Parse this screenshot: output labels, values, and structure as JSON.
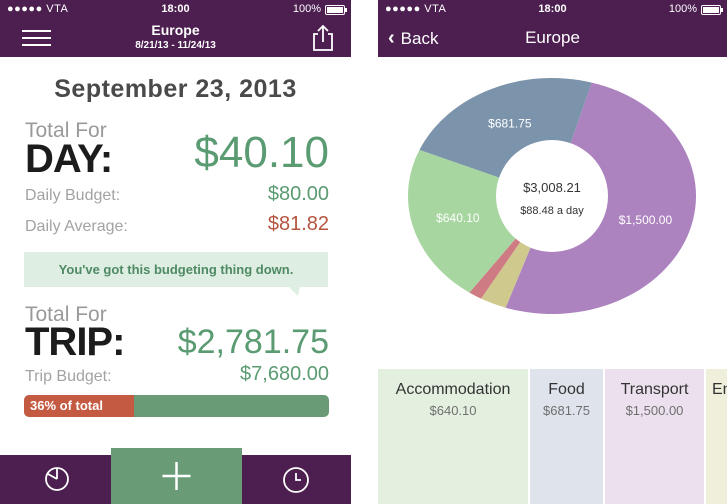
{
  "status_bar": {
    "carrier": "●●●●● VTA",
    "time": "18:00",
    "battery": "100%"
  },
  "left_screen": {
    "header": {
      "title": "Europe",
      "date_range": "8/21/13 - 11/24/13"
    },
    "date_heading": "September 23, 2013",
    "day": {
      "total_for_label": "Total For",
      "word": "DAY:",
      "amount": "$40.10",
      "budget_label": "Daily Budget:",
      "budget_value": "$80.00",
      "average_label": "Daily Average:",
      "average_value": "$81.82"
    },
    "message": "You've got this budgeting thing down.",
    "trip": {
      "total_for_label": "Total For",
      "word": "TRIP:",
      "amount": "$2,781.75",
      "budget_label": "Trip Budget:",
      "budget_value": "$7,680.00",
      "progress_text": "36% of total",
      "progress_fraction": 0.36
    },
    "tab_bar": {
      "chart_icon": "pie-chart-icon",
      "add_icon": "plus-icon",
      "clock_icon": "clock-icon"
    }
  },
  "right_screen": {
    "header": {
      "back_label": "Back",
      "title": "Europe"
    },
    "chart_data": {
      "type": "pie",
      "center_total": "$3,008.21",
      "center_subtitle": "$88.48 a day",
      "slices": [
        {
          "label": "$1,500.00",
          "value": 1500.0,
          "color": "#ac82bf",
          "show_label": true
        },
        {
          "label": "",
          "value": 88,
          "color": "#cfc98e",
          "show_label": false
        },
        {
          "label": "",
          "value": 45,
          "color": "#cf7b84",
          "show_label": false
        },
        {
          "label": "$640.10",
          "value": 640.1,
          "color": "#a8d6a0",
          "show_label": true
        },
        {
          "label": "$681.75",
          "value": 681.75,
          "color": "#7b94ab",
          "show_label": true
        }
      ]
    },
    "categories": [
      {
        "name": "Accommodation",
        "amount": "$640.10",
        "color": "#e3f0e0"
      },
      {
        "name": "Food",
        "amount": "$681.75",
        "color": "#dfe3ec"
      },
      {
        "name": "Transport",
        "amount": "$1,500.00",
        "color": "#ece0ef"
      },
      {
        "name": "En",
        "amount": "",
        "color": "#f0efdc"
      }
    ]
  }
}
